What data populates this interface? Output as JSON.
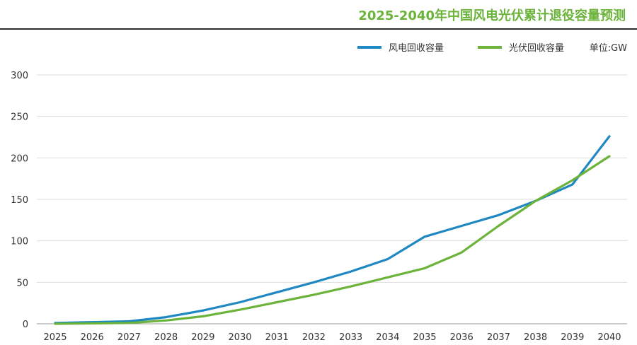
{
  "chart_data": {
    "type": "line",
    "title": "2025-2040年中国风电光伏累计退役容量预测",
    "unit_label": "单位:GW",
    "xlabel": "",
    "ylabel": "",
    "ylim": [
      0,
      300
    ],
    "yticks": [
      0,
      50,
      100,
      150,
      200,
      250,
      300
    ],
    "grid": true,
    "legend_position": "top-right",
    "categories": [
      "2025",
      "2026",
      "2027",
      "2028",
      "2029",
      "2030",
      "2031",
      "2032",
      "2033",
      "2034",
      "2035",
      "2036",
      "2037",
      "2038",
      "2039",
      "2040"
    ],
    "series": [
      {
        "name": "风电回收容量",
        "color": "#1f87c1",
        "values": [
          1,
          2,
          3,
          8,
          16,
          26,
          38,
          50,
          63,
          78,
          105,
          118,
          131,
          148,
          168,
          226
        ]
      },
      {
        "name": "光伏回收容量",
        "color": "#6bb33a",
        "values": [
          0,
          0.5,
          1,
          4,
          9,
          17,
          26,
          35,
          45,
          56,
          67,
          86,
          118,
          148,
          173,
          202
        ]
      }
    ]
  }
}
